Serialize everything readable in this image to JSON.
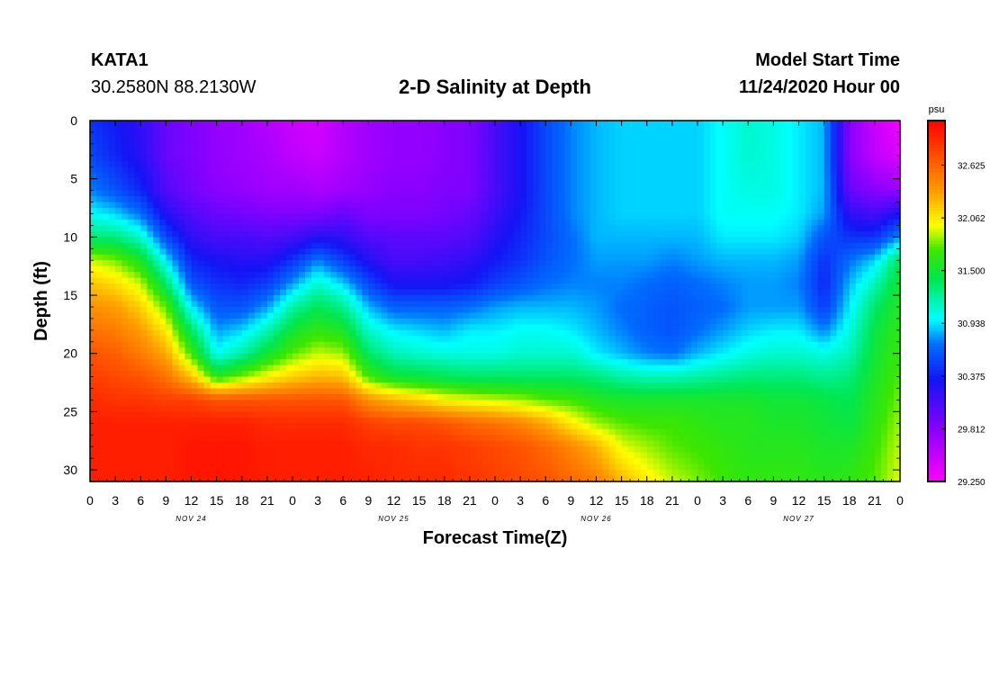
{
  "header": {
    "station_id": "KATA1",
    "coordinates": "30.2580N 88.2130W",
    "title": "2-D Salinity at Depth",
    "model_start_label": "Model Start Time",
    "model_start_value": "11/24/2020 Hour 00"
  },
  "chart_data": {
    "type": "heatmap",
    "title": "2-D Salinity at Depth",
    "xlabel": "Forecast Time(Z)",
    "ylabel": "Depth (ft)",
    "x_range_hours": [
      0,
      96
    ],
    "y_range_ft": [
      0,
      31
    ],
    "x_tick_labels": [
      "0",
      "3",
      "6",
      "9",
      "12",
      "15",
      "18",
      "21",
      "0",
      "3",
      "6",
      "9",
      "12",
      "15",
      "18",
      "21",
      "0",
      "3",
      "6",
      "9",
      "12",
      "15",
      "18",
      "21",
      "0",
      "3",
      "6",
      "9",
      "12",
      "15",
      "18",
      "21",
      "0"
    ],
    "y_ticks": [
      0,
      5,
      10,
      15,
      20,
      25,
      30
    ],
    "day_labels": [
      {
        "text": "NOV 24",
        "hour": 12
      },
      {
        "text": "NOV 25",
        "hour": 36
      },
      {
        "text": "NOV 26",
        "hour": 60
      },
      {
        "text": "NOV 27",
        "hour": 84
      }
    ],
    "colorbar": {
      "unit": "psu",
      "min": 29.25,
      "max": 33.1,
      "tick_labels": [
        "32.625",
        "32.062",
        "31.500",
        "30.938",
        "30.375",
        "29.812",
        "29.250"
      ]
    },
    "depth_levels_ft": [
      0,
      3,
      6,
      8,
      10,
      12,
      14,
      16,
      18,
      20,
      22,
      24,
      26,
      28,
      31
    ],
    "time_hours": [
      0,
      3,
      6,
      9,
      12,
      15,
      18,
      21,
      24,
      27,
      30,
      33,
      36,
      39,
      42,
      45,
      48,
      51,
      54,
      57,
      60,
      63,
      66,
      69,
      72,
      75,
      78,
      81,
      84,
      87,
      90,
      93,
      96
    ],
    "salinity_profiles_psu": [
      [
        30.45,
        30.55,
        30.75,
        31.0,
        31.3,
        31.9,
        32.2,
        32.4,
        32.55,
        32.7,
        32.8,
        32.9,
        32.95,
        32.95,
        32.95
      ],
      [
        30.35,
        30.4,
        30.6,
        30.9,
        31.3,
        31.8,
        32.1,
        32.35,
        32.5,
        32.65,
        32.75,
        32.85,
        32.95,
        32.95,
        32.95
      ],
      [
        30.2,
        30.25,
        30.4,
        30.7,
        31.1,
        31.55,
        31.9,
        32.15,
        32.35,
        32.5,
        32.7,
        32.85,
        32.95,
        32.95,
        32.95
      ],
      [
        29.95,
        29.95,
        30.05,
        30.25,
        30.55,
        30.95,
        31.35,
        31.75,
        32.05,
        32.3,
        32.55,
        32.8,
        32.95,
        32.95,
        32.95
      ],
      [
        29.85,
        29.85,
        29.9,
        30.05,
        30.2,
        30.4,
        30.6,
        30.95,
        31.35,
        31.7,
        32.2,
        32.8,
        32.95,
        33.0,
        33.0
      ],
      [
        29.75,
        29.75,
        29.8,
        29.95,
        30.1,
        30.3,
        30.45,
        30.6,
        30.8,
        31.0,
        31.6,
        32.7,
        32.95,
        33.0,
        33.0
      ],
      [
        29.7,
        29.7,
        29.75,
        29.9,
        30.1,
        30.25,
        30.4,
        30.6,
        30.9,
        31.2,
        31.8,
        32.7,
        32.95,
        33.0,
        33.0
      ],
      [
        29.6,
        29.65,
        29.7,
        29.85,
        30.05,
        30.25,
        30.5,
        30.8,
        31.15,
        31.5,
        32.0,
        32.7,
        32.9,
        32.95,
        32.95
      ],
      [
        29.5,
        29.55,
        29.7,
        29.85,
        30.1,
        30.45,
        30.8,
        31.2,
        31.5,
        31.75,
        32.15,
        32.7,
        32.9,
        32.95,
        32.95
      ],
      [
        29.45,
        29.5,
        29.65,
        29.85,
        30.25,
        30.75,
        31.1,
        31.4,
        31.65,
        31.9,
        32.25,
        32.7,
        32.9,
        32.95,
        32.95
      ],
      [
        29.6,
        29.6,
        29.7,
        29.95,
        30.2,
        30.5,
        30.9,
        31.25,
        31.55,
        31.85,
        32.2,
        32.7,
        32.9,
        32.95,
        32.95
      ],
      [
        29.7,
        29.7,
        29.75,
        29.85,
        30.05,
        30.25,
        30.55,
        30.85,
        31.1,
        31.35,
        31.7,
        32.4,
        32.8,
        32.9,
        32.95
      ],
      [
        29.75,
        29.75,
        29.8,
        29.85,
        30.0,
        30.1,
        30.3,
        30.65,
        30.95,
        31.15,
        31.5,
        32.25,
        32.75,
        32.9,
        32.9
      ],
      [
        29.75,
        29.75,
        29.8,
        29.85,
        30.0,
        30.1,
        30.3,
        30.65,
        30.9,
        31.1,
        31.45,
        32.15,
        32.75,
        32.85,
        32.9
      ],
      [
        29.8,
        29.8,
        29.85,
        29.9,
        30.0,
        30.15,
        30.3,
        30.65,
        30.85,
        31.05,
        31.4,
        32.0,
        32.7,
        32.85,
        32.9
      ],
      [
        29.85,
        29.85,
        29.85,
        29.95,
        30.05,
        30.2,
        30.35,
        30.7,
        30.95,
        31.05,
        31.35,
        31.95,
        32.6,
        32.8,
        32.85
      ],
      [
        30.1,
        30.1,
        30.1,
        30.15,
        30.25,
        30.35,
        30.5,
        30.8,
        30.95,
        31.05,
        31.35,
        31.9,
        32.55,
        32.75,
        32.8
      ],
      [
        30.3,
        30.3,
        30.3,
        30.35,
        30.4,
        30.45,
        30.6,
        30.85,
        31.0,
        31.1,
        31.35,
        31.85,
        32.45,
        32.7,
        32.75
      ],
      [
        30.55,
        30.55,
        30.55,
        30.55,
        30.55,
        30.6,
        30.7,
        30.85,
        31.0,
        31.1,
        31.35,
        31.75,
        32.3,
        32.6,
        32.7
      ],
      [
        30.75,
        30.75,
        30.75,
        30.75,
        30.7,
        30.7,
        30.75,
        30.85,
        30.95,
        31.1,
        31.35,
        31.7,
        32.05,
        32.45,
        32.6
      ],
      [
        30.85,
        30.85,
        30.85,
        30.85,
        30.85,
        30.8,
        30.75,
        30.8,
        30.85,
        30.95,
        31.3,
        31.6,
        31.85,
        32.25,
        32.5
      ],
      [
        30.9,
        30.9,
        30.9,
        30.9,
        30.85,
        30.8,
        30.75,
        30.7,
        30.75,
        30.85,
        31.2,
        31.55,
        31.75,
        31.95,
        32.25
      ],
      [
        30.9,
        30.9,
        30.9,
        30.9,
        30.85,
        30.8,
        30.7,
        30.65,
        30.65,
        30.75,
        31.15,
        31.55,
        31.7,
        31.85,
        32.05
      ],
      [
        30.9,
        30.9,
        30.9,
        30.9,
        30.85,
        30.75,
        30.65,
        30.6,
        30.6,
        30.7,
        31.15,
        31.55,
        31.7,
        31.75,
        31.9
      ],
      [
        30.9,
        30.9,
        30.9,
        30.9,
        30.85,
        30.8,
        30.7,
        30.65,
        30.7,
        30.85,
        31.2,
        31.55,
        31.65,
        31.7,
        31.8
      ],
      [
        31.0,
        31.0,
        31.0,
        31.0,
        30.95,
        30.85,
        30.75,
        30.7,
        30.8,
        30.95,
        31.25,
        31.55,
        31.6,
        31.65,
        31.7
      ],
      [
        31.1,
        31.1,
        31.05,
        31.0,
        30.95,
        30.85,
        30.8,
        30.8,
        30.9,
        31.05,
        31.3,
        31.55,
        31.6,
        31.6,
        31.65
      ],
      [
        31.05,
        31.05,
        31.05,
        31.0,
        30.95,
        30.85,
        30.8,
        30.8,
        30.95,
        31.1,
        31.3,
        31.5,
        31.55,
        31.6,
        31.65
      ],
      [
        30.95,
        30.95,
        30.95,
        30.95,
        30.9,
        30.8,
        30.75,
        30.8,
        30.95,
        31.1,
        31.3,
        31.5,
        31.55,
        31.6,
        31.65
      ],
      [
        30.85,
        30.85,
        30.85,
        30.8,
        30.6,
        30.45,
        30.4,
        30.5,
        30.75,
        31.05,
        31.25,
        31.45,
        31.5,
        31.55,
        31.6
      ],
      [
        29.8,
        29.8,
        29.95,
        30.2,
        30.45,
        30.7,
        30.85,
        30.95,
        31.05,
        31.15,
        31.3,
        31.4,
        31.45,
        31.55,
        31.65
      ],
      [
        29.5,
        29.55,
        29.8,
        30.1,
        30.45,
        30.9,
        31.15,
        31.35,
        31.45,
        31.5,
        31.55,
        31.6,
        31.65,
        31.7,
        31.75
      ],
      [
        29.3,
        29.4,
        29.75,
        30.3,
        30.8,
        31.4,
        31.55,
        31.6,
        31.65,
        31.7,
        31.75,
        31.8,
        31.85,
        31.9,
        31.95
      ]
    ]
  }
}
